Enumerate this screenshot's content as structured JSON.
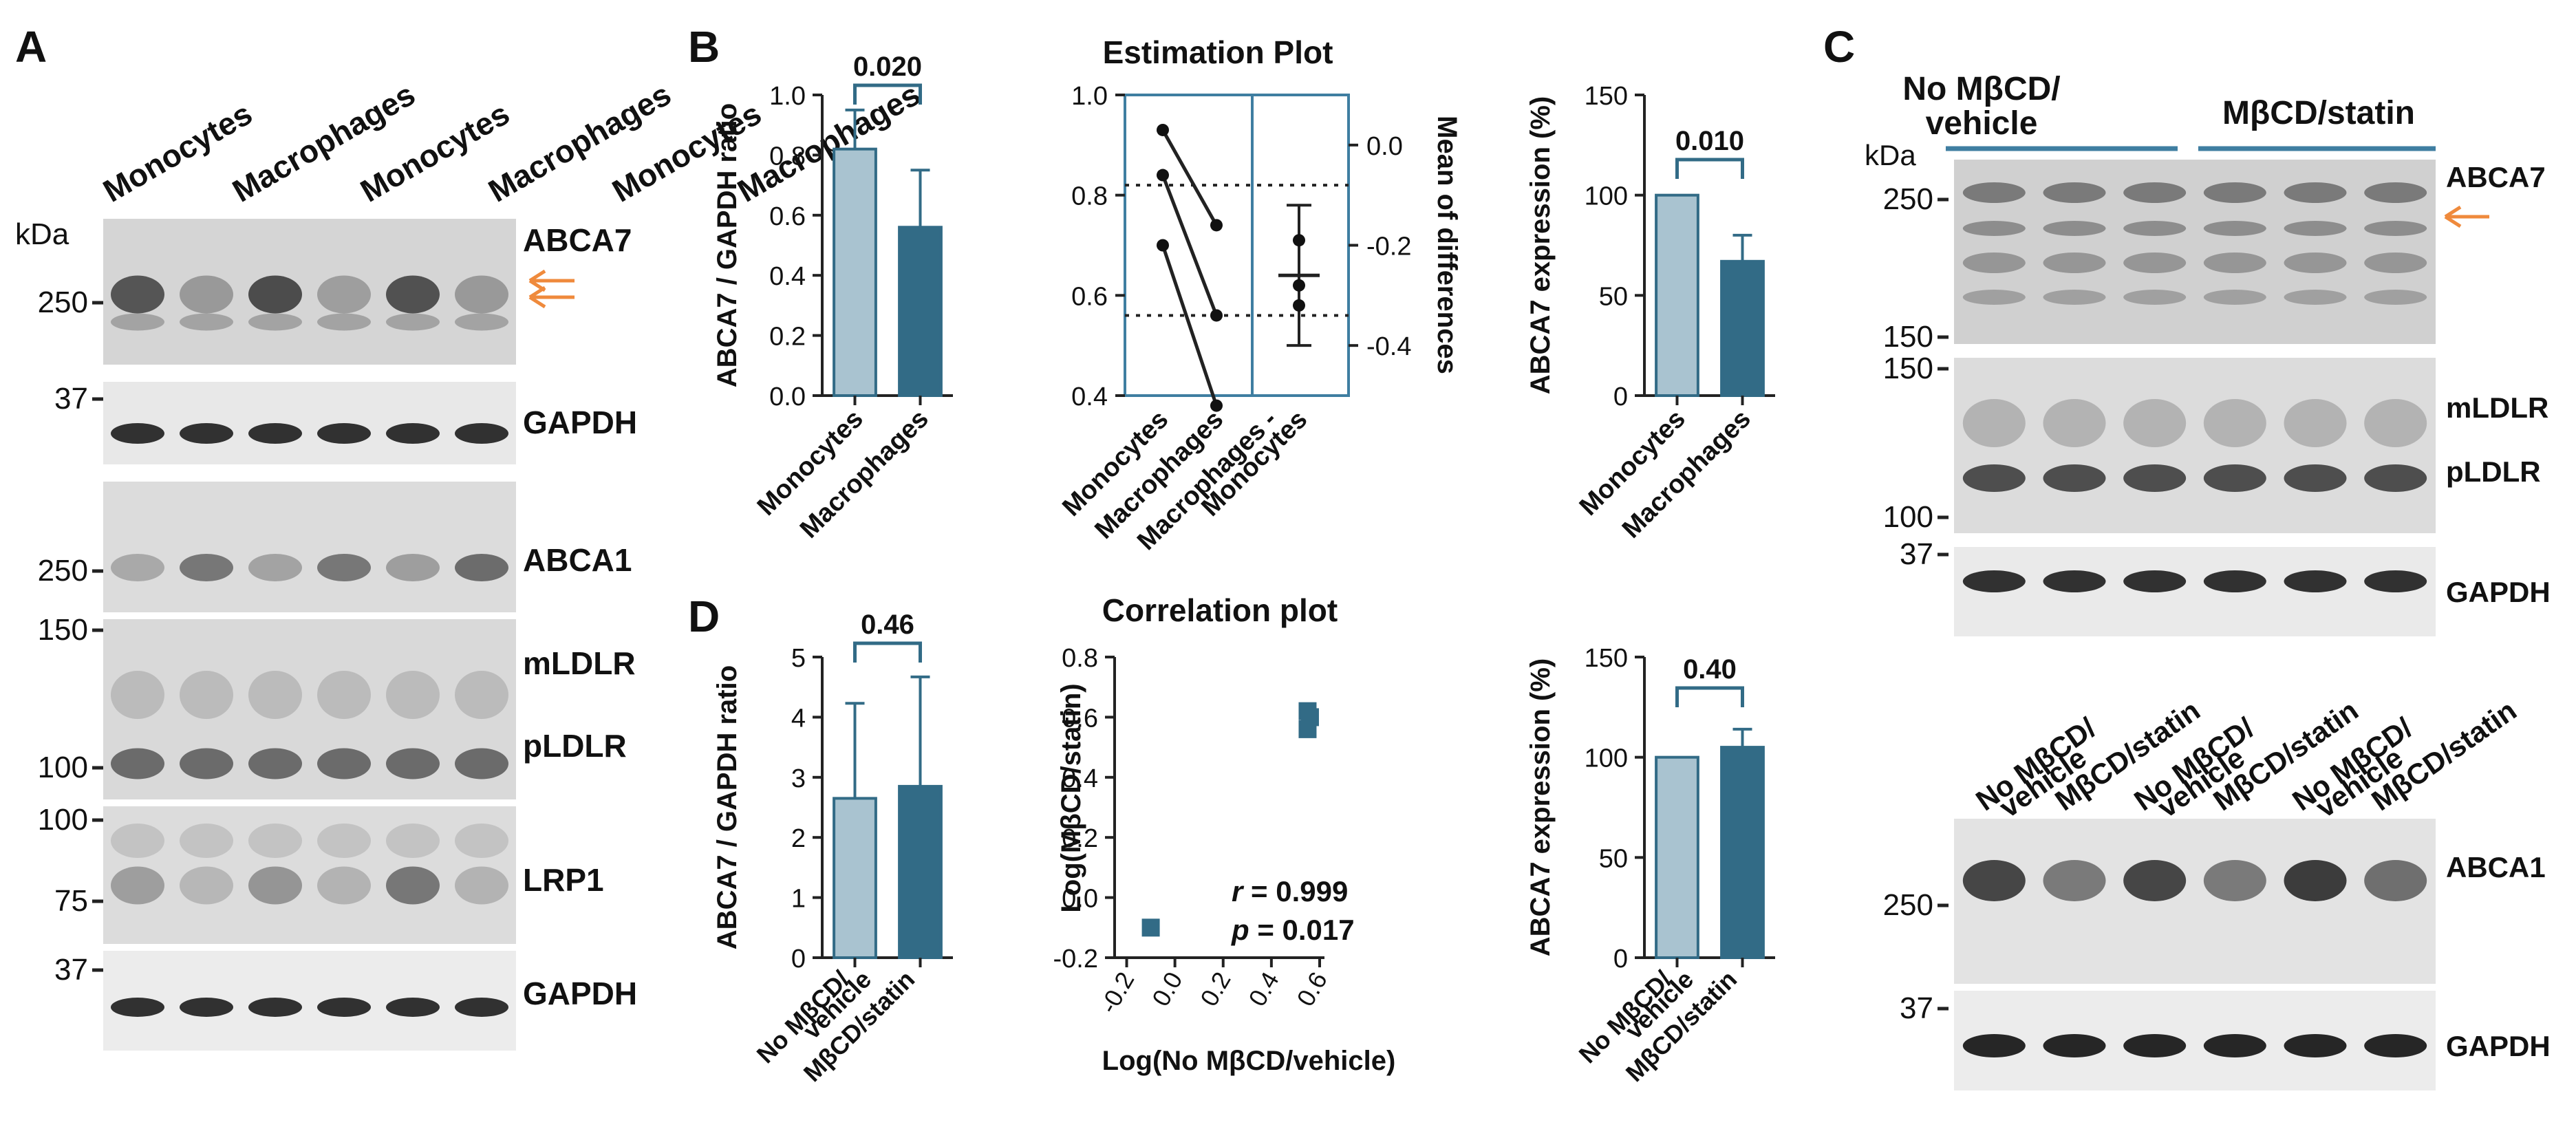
{
  "panel_labels": {
    "a": "A",
    "b": "B",
    "c": "C",
    "d": "D"
  },
  "colors": {
    "light_bar": "#a9c3d0",
    "dark_bar": "#326b86",
    "accent_line": "#3f7ea1",
    "arrow": "#ef8a3c",
    "axis": "#222222",
    "band": "#111111"
  },
  "panel_a": {
    "lane_labels": [
      "Monocytes",
      "Macrophages",
      "Monocytes",
      "Macrophages",
      "Monocytes",
      "Macrophages"
    ],
    "kda_label": "kDa",
    "blots": [
      {
        "protein": "ABCA7",
        "markers": [
          "250"
        ]
      },
      {
        "protein": "GAPDH",
        "markers": [
          "37"
        ]
      },
      {
        "protein": "ABCA1",
        "markers": [
          "250"
        ]
      },
      {
        "protein": "mLDLR",
        "protein2": "pLDLR",
        "markers": [
          "150",
          "100"
        ]
      },
      {
        "protein": "LRP1",
        "markers": [
          "100",
          "75"
        ]
      },
      {
        "protein": "GAPDH",
        "markers": [
          "37"
        ]
      }
    ]
  },
  "panel_c": {
    "group_labels": {
      "g1_line1": "No MβCD/",
      "g1_line2": "vehicle",
      "g2": "MβCD/statin"
    },
    "kda_label": "kDa",
    "top_blots": [
      {
        "protein": "ABCA7",
        "markers": [
          "250",
          "150"
        ]
      },
      {
        "protein": "mLDLR",
        "protein2": "pLDLR",
        "markers": [
          "150",
          "100"
        ]
      },
      {
        "protein": "GAPDH",
        "markers": [
          "37"
        ]
      }
    ],
    "lane_labels": [
      {
        "line1": "No MβCD/",
        "line2": "vehicle"
      },
      {
        "line1": "MβCD/statin",
        "line2": ""
      },
      {
        "line1": "No MβCD/",
        "line2": "vehicle"
      },
      {
        "line1": "MβCD/statin",
        "line2": ""
      },
      {
        "line1": "No MβCD/",
        "line2": "vehicle"
      },
      {
        "line1": "MβCD/statin",
        "line2": ""
      }
    ],
    "bottom_blots": [
      {
        "protein": "ABCA1",
        "markers": [
          "250"
        ]
      },
      {
        "protein": "GAPDH",
        "markers": [
          "37"
        ]
      }
    ]
  },
  "chart_data": [
    {
      "id": "b1",
      "type": "bar",
      "title": "",
      "categories": [
        "Monocytes",
        "Macrophages"
      ],
      "values": [
        0.82,
        0.56
      ],
      "error": [
        0.13,
        0.19
      ],
      "ylabel": "ABCA7 / GAPDH ratio",
      "xlabel": "",
      "ylim": [
        0,
        1.0
      ],
      "yticks": [
        "0.0",
        "0.2",
        "0.4",
        "0.6",
        "0.8",
        "1.0"
      ],
      "pvalue": "0.020"
    },
    {
      "id": "b2",
      "type": "line",
      "title": "Estimation Plot",
      "categories": [
        "Monocytes",
        "Macrophages",
        "Macrophages -",
        "Monocytes"
      ],
      "pairs": [
        [
          0.93,
          0.74
        ],
        [
          0.84,
          0.56
        ],
        [
          0.7,
          0.38
        ]
      ],
      "left_ylim": [
        0.4,
        1.0
      ],
      "left_yticks": [
        "0.4",
        "0.6",
        "0.8",
        "1.0"
      ],
      "right_ylabel": "Mean of differences",
      "right_ylim": [
        -0.5,
        0.1
      ],
      "right_yticks": [
        "0.0",
        "-0.2",
        "-0.4"
      ],
      "differences": [
        -0.19,
        -0.28,
        -0.32
      ],
      "mean_difference": -0.26,
      "ci": [
        -0.4,
        -0.12
      ],
      "reference_lines": [
        0.82,
        0.56
      ]
    },
    {
      "id": "b3",
      "type": "bar",
      "title": "",
      "categories": [
        "Monocytes",
        "Macrophages"
      ],
      "values": [
        100,
        67
      ],
      "error": [
        0,
        13
      ],
      "ylabel": "ABCA7 expression (%)",
      "xlabel": "",
      "ylim": [
        0,
        150
      ],
      "yticks": [
        "0",
        "50",
        "100",
        "150"
      ],
      "pvalue": "0.010"
    },
    {
      "id": "d1",
      "type": "bar",
      "title": "",
      "categories": [
        {
          "line1": "No MβCD/",
          "line2": "vehicle"
        },
        {
          "line1": "MβCD/statin",
          "line2": ""
        }
      ],
      "values": [
        2.65,
        2.85
      ],
      "error": [
        1.58,
        1.82
      ],
      "ylabel": "ABCA7 / GAPDH ratio",
      "xlabel": "",
      "ylim": [
        0,
        5
      ],
      "yticks": [
        "0",
        "1",
        "2",
        "3",
        "4",
        "5"
      ],
      "pvalue": "0.46"
    },
    {
      "id": "d2",
      "type": "scatter",
      "title": "Correlation plot",
      "points": [
        [
          -0.1,
          -0.1
        ],
        [
          0.55,
          0.56
        ],
        [
          0.56,
          0.6
        ],
        [
          0.55,
          0.62
        ]
      ],
      "xlabel": "Log(No MβCD/vehicle)",
      "ylabel": "Log(MβCD/statin)",
      "xlim": [
        -0.25,
        0.62
      ],
      "ylim": [
        -0.2,
        0.8
      ],
      "xticks": [
        "-0.2",
        "0.0",
        "0.2",
        "0.4",
        "0.6"
      ],
      "yticks": [
        "-0.2",
        "0.0",
        "0.2",
        "0.4",
        "0.6",
        "0.8"
      ],
      "r_label": "r",
      "r_value": " = 0.999",
      "p_label": "p",
      "p_value": " = 0.017"
    },
    {
      "id": "d3",
      "type": "bar",
      "title": "",
      "categories": [
        {
          "line1": "No MβCD/",
          "line2": "vehicle"
        },
        {
          "line1": "MβCD/statin",
          "line2": ""
        }
      ],
      "values": [
        100,
        105
      ],
      "error": [
        0,
        9
      ],
      "ylabel": "ABCA7 expression (%)",
      "xlabel": "",
      "ylim": [
        0,
        150
      ],
      "yticks": [
        "0",
        "50",
        "100",
        "150"
      ],
      "pvalue": "0.40"
    }
  ]
}
